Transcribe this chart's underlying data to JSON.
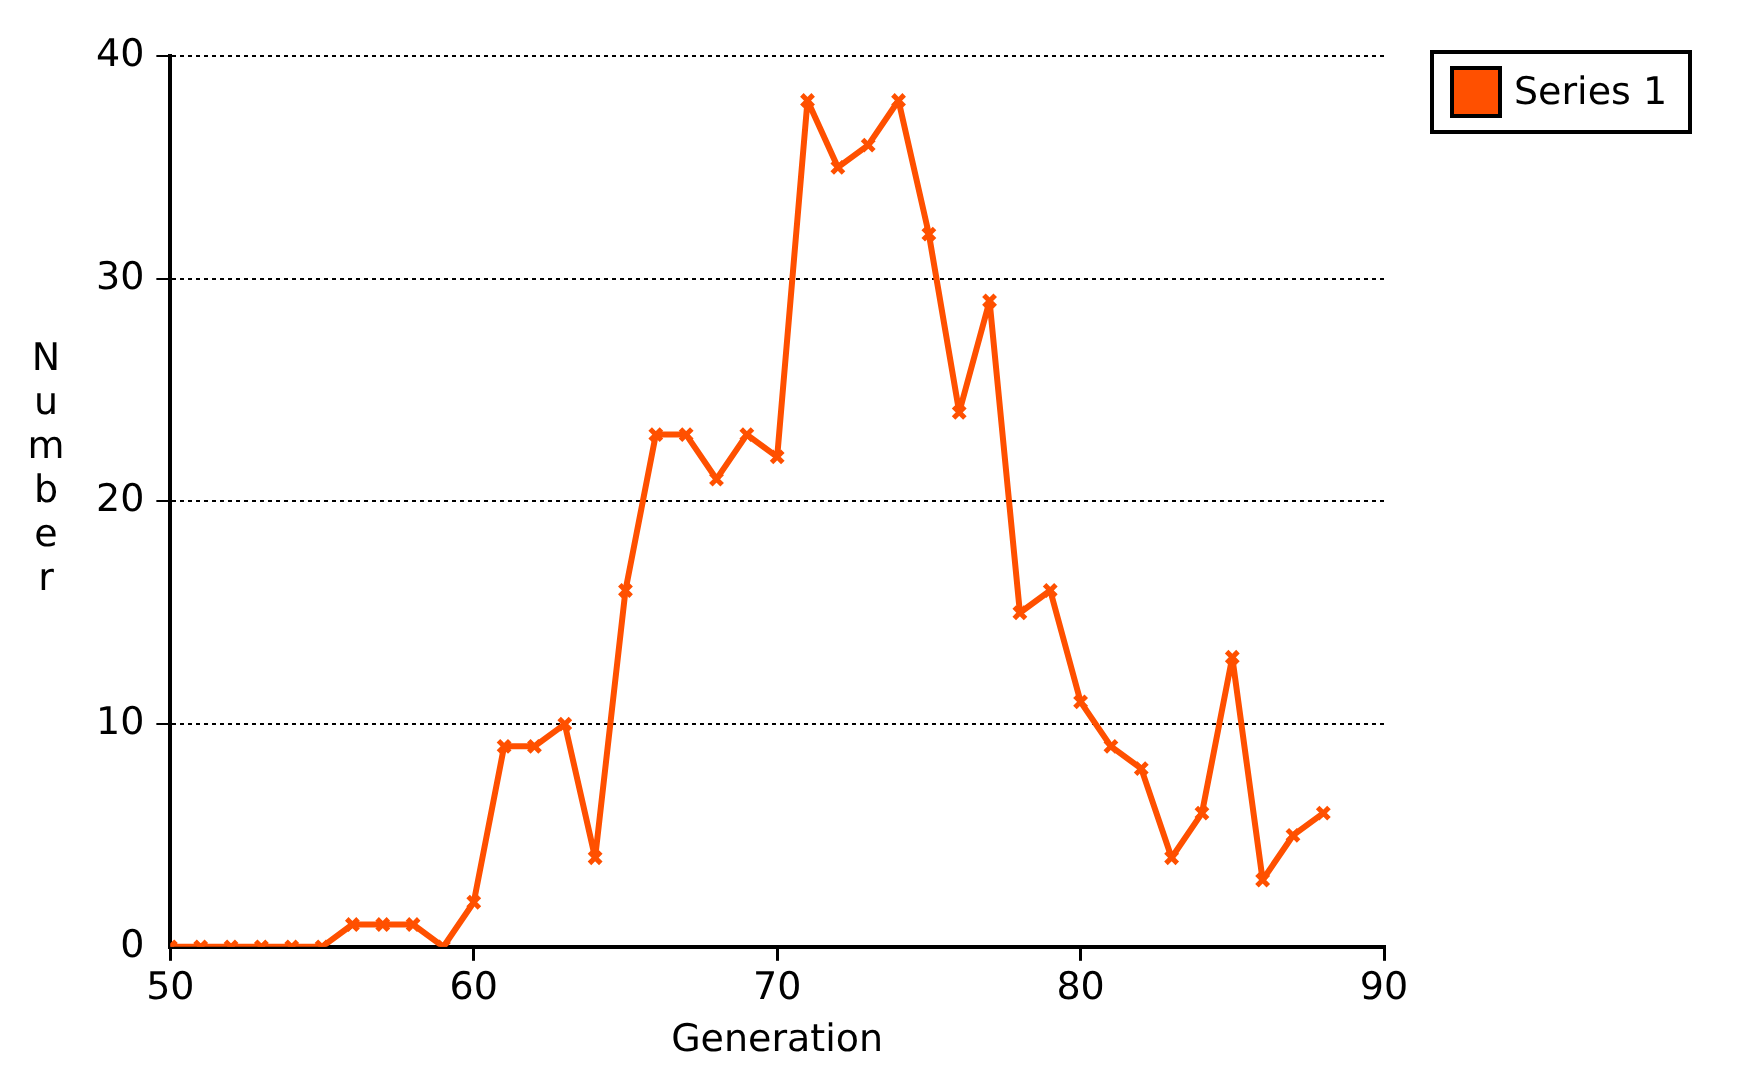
{
  "chart_data": {
    "type": "line",
    "xlabel": "Generation",
    "ylabel": "Number",
    "x": [
      50,
      51,
      52,
      53,
      54,
      55,
      56,
      57,
      58,
      59,
      60,
      61,
      62,
      63,
      64,
      65,
      66,
      67,
      68,
      69,
      70,
      71,
      72,
      73,
      74,
      75,
      76,
      77,
      78,
      79,
      80,
      81,
      82,
      83,
      84,
      85,
      86,
      87,
      88
    ],
    "series": [
      {
        "name": "Series 1",
        "color": "#ff5000",
        "values": [
          0,
          0,
          0,
          0,
          0,
          0,
          1,
          1,
          1,
          0,
          2,
          9,
          9,
          10,
          4,
          16,
          23,
          23,
          21,
          23,
          22,
          38,
          35,
          36,
          38,
          32,
          24,
          29,
          15,
          16,
          11,
          9,
          8,
          4,
          6,
          13,
          3,
          5,
          6
        ]
      }
    ],
    "xlim": [
      50,
      90
    ],
    "xticks": [
      50,
      60,
      70,
      80,
      90
    ],
    "ylim": [
      0,
      40
    ],
    "yticks": [
      0,
      10,
      20,
      30,
      40
    ],
    "grid": "y",
    "legend": "top right",
    "marker": "cross",
    "line_style": "solid"
  }
}
